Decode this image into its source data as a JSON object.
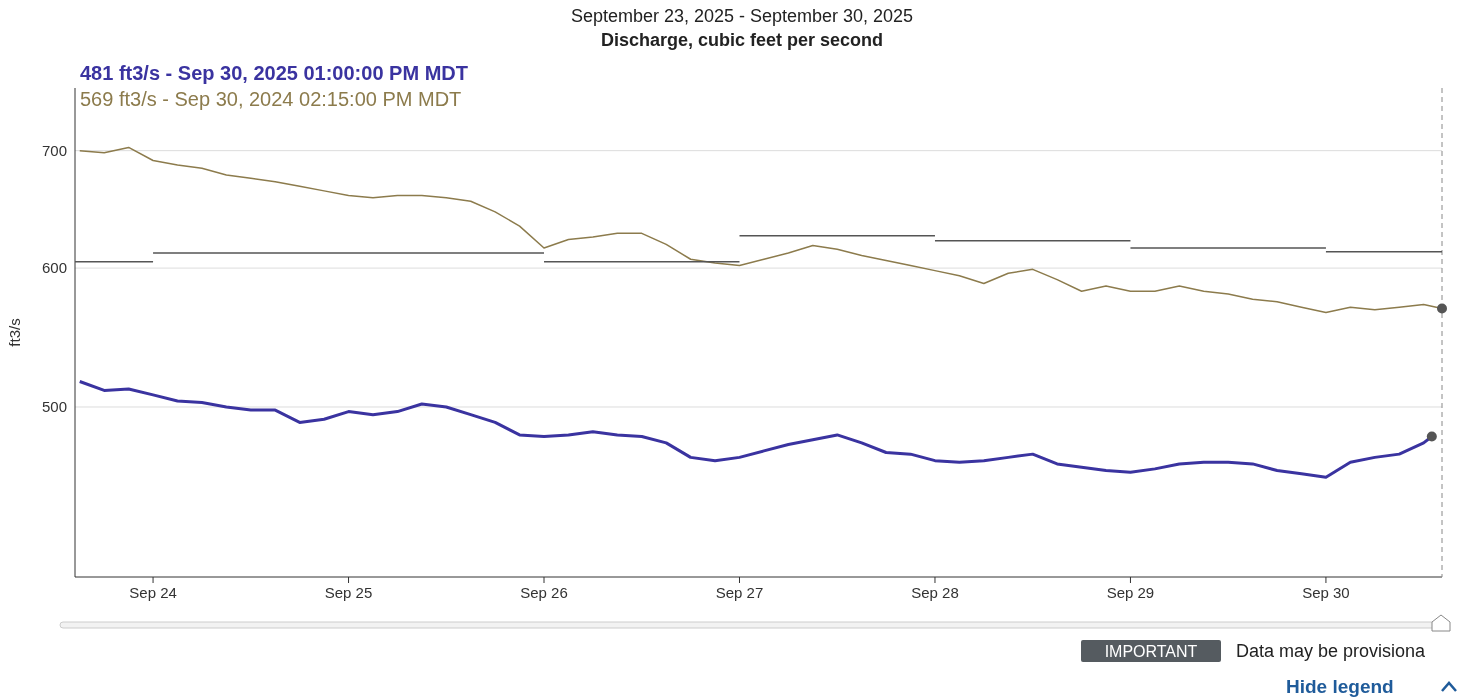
{
  "chart_data": {
    "type": "line",
    "title": "September 23, 2025 - September 30, 2025",
    "subtitle": "Discharge, cubic feet per second",
    "ylabel": "ft3/s",
    "xlim": [
      "2025-09-23T14:25",
      "2025-09-30T14:15"
    ],
    "xticks": [
      {
        "value": "2025-09-24",
        "label": "Sep 24"
      },
      {
        "value": "2025-09-25",
        "label": "Sep 25"
      },
      {
        "value": "2025-09-26",
        "label": "Sep 26"
      },
      {
        "value": "2025-09-27",
        "label": "Sep 27"
      },
      {
        "value": "2025-09-28",
        "label": "Sep 28"
      },
      {
        "value": "2025-09-29",
        "label": "Sep 29"
      },
      {
        "value": "2025-09-30",
        "label": "Sep 30"
      }
    ],
    "ylim": [
      400,
      760
    ],
    "yticks": [
      500,
      600,
      700
    ],
    "log": "y",
    "grid": "y",
    "ref_lines": [
      {
        "axis": "x",
        "value": "2025-09-30T14:15",
        "label": null,
        "color": "#888888",
        "line_style": "dashed"
      }
    ],
    "annotations": [
      "IMPORTANT",
      "Data may be provisiona",
      "Hide legend"
    ],
    "series": [
      {
        "name": "569 ft3/s - Sep 30, 2024 02:15:00 PM MDT",
        "color": "#8c7b4c",
        "x": [
          "2025-09-23T15:00",
          "2025-09-23T18:00",
          "2025-09-23T21:00",
          "2025-09-24T00:00",
          "2025-09-24T03:00",
          "2025-09-24T06:00",
          "2025-09-24T09:00",
          "2025-09-24T12:00",
          "2025-09-24T15:00",
          "2025-09-24T18:00",
          "2025-09-24T21:00",
          "2025-09-25T00:00",
          "2025-09-25T03:00",
          "2025-09-25T06:00",
          "2025-09-25T09:00",
          "2025-09-25T12:00",
          "2025-09-25T15:00",
          "2025-09-25T18:00",
          "2025-09-25T21:00",
          "2025-09-26T00:00",
          "2025-09-26T03:00",
          "2025-09-26T06:00",
          "2025-09-26T09:00",
          "2025-09-26T12:00",
          "2025-09-26T15:00",
          "2025-09-26T18:00",
          "2025-09-26T21:00",
          "2025-09-27T00:00",
          "2025-09-27T03:00",
          "2025-09-27T06:00",
          "2025-09-27T09:00",
          "2025-09-27T12:00",
          "2025-09-27T15:00",
          "2025-09-27T18:00",
          "2025-09-27T21:00",
          "2025-09-28T00:00",
          "2025-09-28T03:00",
          "2025-09-28T06:00",
          "2025-09-28T09:00",
          "2025-09-28T12:00",
          "2025-09-28T15:00",
          "2025-09-28T18:00",
          "2025-09-28T21:00",
          "2025-09-29T00:00",
          "2025-09-29T03:00",
          "2025-09-29T06:00",
          "2025-09-29T09:00",
          "2025-09-29T12:00",
          "2025-09-29T15:00",
          "2025-09-29T18:00",
          "2025-09-29T21:00",
          "2025-09-30T00:00",
          "2025-09-30T03:00",
          "2025-09-30T06:00",
          "2025-09-30T09:00",
          "2025-09-30T12:00",
          "2025-09-30T14:15"
        ],
        "values": [
          700,
          698,
          703,
          691,
          687,
          684,
          678,
          675,
          672,
          668,
          664,
          660,
          658,
          660,
          660,
          658,
          655,
          646,
          634,
          616,
          623,
          625,
          628,
          628,
          619,
          607,
          604,
          602,
          607,
          612,
          618,
          615,
          610,
          606,
          602,
          598,
          594,
          588,
          596,
          599,
          591,
          582,
          586,
          582,
          582,
          586,
          582,
          580,
          576,
          574,
          570,
          566,
          570,
          568,
          570,
          572,
          569
        ]
      },
      {
        "name": "481 ft3/s - Sep 30, 2025 01:00:00 PM MDT",
        "color": "#3a33a0",
        "x": [
          "2025-09-23T15:00",
          "2025-09-23T18:00",
          "2025-09-23T21:00",
          "2025-09-24T00:00",
          "2025-09-24T03:00",
          "2025-09-24T06:00",
          "2025-09-24T09:00",
          "2025-09-24T12:00",
          "2025-09-24T15:00",
          "2025-09-24T18:00",
          "2025-09-24T21:00",
          "2025-09-25T00:00",
          "2025-09-25T03:00",
          "2025-09-25T06:00",
          "2025-09-25T09:00",
          "2025-09-25T12:00",
          "2025-09-25T15:00",
          "2025-09-25T18:00",
          "2025-09-25T21:00",
          "2025-09-26T00:00",
          "2025-09-26T03:00",
          "2025-09-26T06:00",
          "2025-09-26T09:00",
          "2025-09-26T12:00",
          "2025-09-26T15:00",
          "2025-09-26T18:00",
          "2025-09-26T21:00",
          "2025-09-27T00:00",
          "2025-09-27T03:00",
          "2025-09-27T06:00",
          "2025-09-27T09:00",
          "2025-09-27T12:00",
          "2025-09-27T15:00",
          "2025-09-27T18:00",
          "2025-09-27T21:00",
          "2025-09-28T00:00",
          "2025-09-28T03:00",
          "2025-09-28T06:00",
          "2025-09-28T09:00",
          "2025-09-28T12:00",
          "2025-09-28T15:00",
          "2025-09-28T18:00",
          "2025-09-28T21:00",
          "2025-09-29T00:00",
          "2025-09-29T03:00",
          "2025-09-29T06:00",
          "2025-09-29T09:00",
          "2025-09-29T12:00",
          "2025-09-29T15:00",
          "2025-09-29T18:00",
          "2025-09-29T21:00",
          "2025-09-30T00:00",
          "2025-09-30T03:00",
          "2025-09-30T06:00",
          "2025-09-30T09:00",
          "2025-09-30T12:00",
          "2025-09-30T13:00"
        ],
        "values": [
          517,
          511,
          512,
          508,
          504,
          503,
          500,
          498,
          498,
          490,
          492,
          497,
          495,
          497,
          502,
          500,
          495,
          490,
          482,
          481,
          482,
          484,
          482,
          481,
          477,
          468,
          466,
          468,
          472,
          476,
          479,
          482,
          477,
          471,
          470,
          466,
          465,
          466,
          468,
          470,
          464,
          462,
          460,
          459,
          461,
          464,
          465,
          465,
          464,
          460,
          458,
          456,
          465,
          468,
          470,
          477,
          481
        ]
      },
      {
        "color": "#555555",
        "x": [
          "2025-09-23T14:25",
          "2025-09-24"
        ],
        "values": [
          605,
          605
        ]
      },
      {
        "color": "#555555",
        "x": [
          "2025-09-24",
          "2025-09-26"
        ],
        "values": [
          612,
          612
        ]
      },
      {
        "color": "#555555",
        "x": [
          "2025-09-26",
          "2025-09-27"
        ],
        "values": [
          605,
          605
        ]
      },
      {
        "color": "#555555",
        "x": [
          "2025-09-27",
          "2025-09-28"
        ],
        "values": [
          626,
          626
        ]
      },
      {
        "color": "#555555",
        "x": [
          "2025-09-28",
          "2025-09-29"
        ],
        "values": [
          622,
          622
        ]
      },
      {
        "color": "#555555",
        "x": [
          "2025-09-29",
          "2025-09-30"
        ],
        "values": [
          616,
          616
        ]
      },
      {
        "color": "#555555",
        "x": [
          "2025-09-30",
          "2025-09-30T14:15"
        ],
        "values": [
          613,
          613
        ]
      }
    ]
  }
}
